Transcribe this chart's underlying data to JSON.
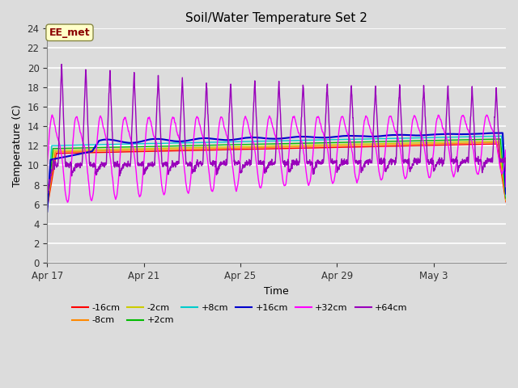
{
  "title": "Soil/Water Temperature Set 2",
  "xlabel": "Time",
  "ylabel": "Temperature (C)",
  "ylim": [
    0,
    24
  ],
  "yticks": [
    0,
    2,
    4,
    6,
    8,
    10,
    12,
    14,
    16,
    18,
    20,
    22,
    24
  ],
  "xtick_labels": [
    "Apr 17",
    "Apr 21",
    "Apr 25",
    "Apr 29",
    "May 3"
  ],
  "xtick_positions": [
    0,
    4,
    8,
    12,
    16
  ],
  "xlim": [
    0,
    19
  ],
  "bg_color": "#dcdcdc",
  "annotation_text": "EE_met",
  "annotation_color": "#8B0000",
  "annotation_bg": "#ffffc8",
  "colors": {
    "-16cm": "#ff0000",
    "-8cm": "#ff8800",
    "-2cm": "#cccc00",
    "+2cm": "#00bb00",
    "+8cm": "#00cccc",
    "+16cm": "#0000cc",
    "+32cm": "#ff00ff",
    "+64cm": "#9900bb"
  },
  "n_points": 2000,
  "n_days": 19
}
